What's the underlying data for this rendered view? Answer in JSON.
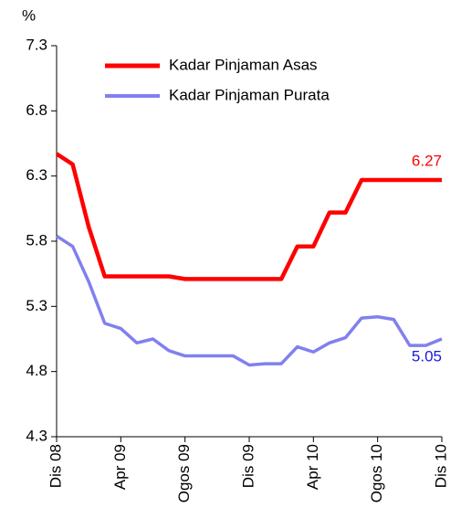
{
  "chart_data": {
    "type": "line",
    "y_label": "%",
    "categories": [
      "Dis 08",
      null,
      null,
      null,
      "Apr 09",
      null,
      null,
      null,
      "Ogos 09",
      null,
      null,
      null,
      "Dis 09",
      null,
      null,
      null,
      "Apr 10",
      null,
      null,
      null,
      "Ogos 10",
      null,
      null,
      null,
      "Dis 10"
    ],
    "series": [
      {
        "name": "Kadar Pinjaman Asas",
        "color": "#ff0000",
        "values": [
          6.47,
          6.39,
          5.91,
          5.53,
          5.53,
          5.53,
          5.53,
          5.53,
          5.51,
          5.51,
          5.51,
          5.51,
          5.51,
          5.51,
          5.51,
          5.76,
          5.76,
          6.02,
          6.02,
          6.27,
          6.27,
          6.27,
          6.27,
          6.27,
          6.27
        ]
      },
      {
        "name": "Kadar Pinjaman Purata",
        "color": "#8080f0",
        "values": [
          5.84,
          5.76,
          5.49,
          5.17,
          5.13,
          5.02,
          5.05,
          4.96,
          4.92,
          4.92,
          4.92,
          4.92,
          4.85,
          4.86,
          4.86,
          4.99,
          4.95,
          5.02,
          5.06,
          5.21,
          5.22,
          5.2,
          5.0,
          5.0,
          5.05
        ]
      }
    ],
    "ylim": [
      4.3,
      7.3
    ],
    "yticks": [
      4.3,
      4.8,
      5.3,
      5.8,
      6.3,
      6.8,
      7.3
    ],
    "legend": "top"
  }
}
